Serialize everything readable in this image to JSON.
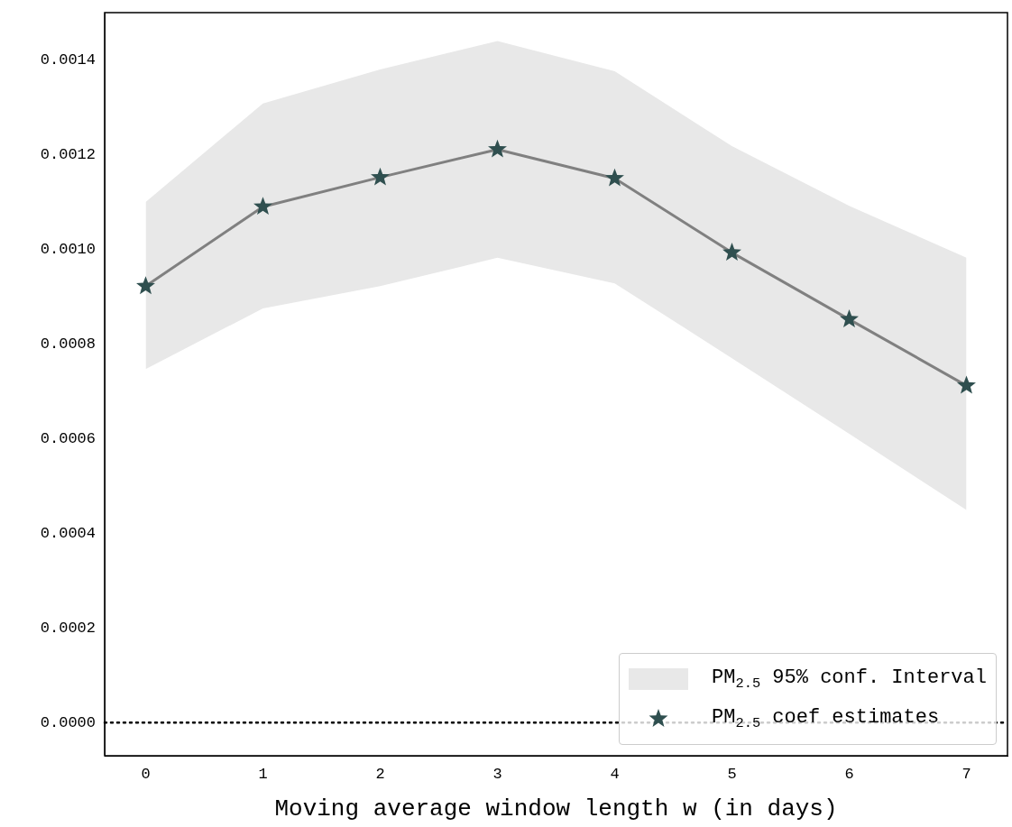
{
  "chart_data": {
    "type": "line",
    "xlabel": "Moving average window length w (in days)",
    "x": [
      0,
      1,
      2,
      3,
      4,
      5,
      6,
      7
    ],
    "xlim": [
      -0.35,
      7.35
    ],
    "xticks": [
      0,
      1,
      2,
      3,
      4,
      5,
      6,
      7
    ],
    "ylim": [
      -7e-05,
      0.0015
    ],
    "yticks": [
      {
        "value": 0,
        "label": "0.0000"
      },
      {
        "value": 0.0002,
        "label": "0.0002"
      },
      {
        "value": 0.0004,
        "label": "0.0004"
      },
      {
        "value": 0.0006,
        "label": "0.0006"
      },
      {
        "value": 0.0008,
        "label": "0.0008"
      },
      {
        "value": 0.001,
        "label": "0.0010"
      },
      {
        "value": 0.0012,
        "label": "0.0012"
      },
      {
        "value": 0.0014,
        "label": "0.0014"
      }
    ],
    "series": [
      {
        "type": "area",
        "name": "PM$_{2.5}$ 95% conf. Interval",
        "color": "#e8e8e8",
        "values": [
          null,
          null,
          null,
          null,
          null,
          null,
          null,
          null
        ],
        "lower": [
          0.000747,
          0.000875,
          0.000922,
          0.000982,
          0.000928,
          0.00077,
          0.00061,
          0.000449
        ],
        "upper": [
          0.0011,
          0.001308,
          0.00138,
          0.00144,
          0.001376,
          0.001218,
          0.001092,
          0.000982
        ]
      },
      {
        "type": "line",
        "color": "#808080",
        "marker": "none",
        "values": [
          0.000922,
          0.00109,
          0.001152,
          0.001211,
          0.00115,
          0.000993,
          0.000852,
          0.000712
        ]
      },
      {
        "type": "scatter",
        "name": "PM$_{2.5}$ coef estimates",
        "color": "#2f4f4f",
        "marker": "star",
        "values": [
          0.000922,
          0.00109,
          0.001152,
          0.001211,
          0.00115,
          0.000993,
          0.000852,
          0.000712
        ]
      }
    ],
    "ref_lines": [
      {
        "axis": "y",
        "value": 0,
        "color": "#000000",
        "line_style": "dotted"
      }
    ],
    "grid": false,
    "legend": "bottom right"
  }
}
